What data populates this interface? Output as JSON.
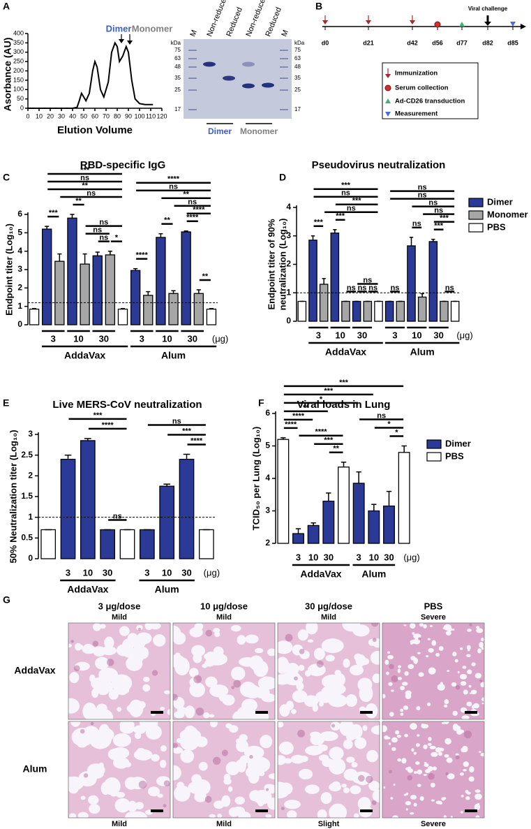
{
  "panel_labels": [
    "A",
    "B",
    "C",
    "D",
    "E",
    "F",
    "G"
  ],
  "chart_data": [
    {
      "type": "line",
      "x_label": "Elution Volume",
      "y_label": "Asorbance (AU)",
      "x": [
        0,
        40,
        44,
        46,
        48,
        50,
        52,
        55,
        58,
        60,
        62,
        65,
        68,
        72,
        75,
        78,
        80,
        82,
        85,
        88,
        90,
        93,
        96,
        100,
        105,
        112
      ],
      "values": [
        0,
        0,
        5,
        40,
        80,
        60,
        40,
        80,
        200,
        250,
        220,
        100,
        60,
        140,
        300,
        350,
        330,
        250,
        280,
        330,
        300,
        150,
        50,
        25,
        20,
        20
      ],
      "color": "#000000",
      "xlim": [
        0,
        120
      ],
      "xticks": [
        0,
        10,
        20,
        30,
        40,
        50,
        60,
        70,
        80,
        90,
        100,
        110,
        120
      ],
      "ylim": [
        0,
        400
      ],
      "yticks": [
        0,
        50,
        100,
        150,
        200,
        250,
        300,
        350,
        400
      ],
      "annotations": [
        {
          "text": "Dimer",
          "color": "#3a5fc5"
        },
        {
          "text": "Monomer",
          "color": "#808080"
        }
      ]
    },
    {
      "type": "bar",
      "title": "RBD-specific IgG",
      "y_label": "Endpoint titer (Log₁₀)",
      "ylim": [
        0,
        6
      ],
      "yticks": [
        0,
        1,
        2,
        3,
        4,
        5,
        6
      ],
      "threshold": 1.2,
      "series": [
        {
          "color": "#2b3a97",
          "values": [
            null,
            5.2,
            null,
            5.8,
            null,
            3.75,
            null,
            null,
            2.95,
            null,
            4.75,
            null,
            5.05,
            null,
            null
          ],
          "errors": [
            null,
            0.15,
            null,
            0.2,
            null,
            0.2,
            null,
            null,
            0.1,
            null,
            0.2,
            null,
            0.05,
            null,
            null
          ]
        },
        {
          "color": "#a6a6a6",
          "values": [
            null,
            null,
            3.45,
            null,
            3.3,
            null,
            3.8,
            null,
            null,
            1.6,
            null,
            1.7,
            null,
            1.7,
            null
          ],
          "errors": [
            null,
            null,
            0.4,
            null,
            0.55,
            null,
            0.2,
            null,
            null,
            0.2,
            null,
            0.15,
            null,
            0.2,
            null
          ]
        },
        {
          "color": "#ffffff",
          "values": [
            0.85,
            null,
            null,
            null,
            null,
            null,
            null,
            0.85,
            null,
            null,
            null,
            null,
            null,
            null,
            0.85
          ],
          "errors": [
            0.03,
            null,
            null,
            null,
            null,
            null,
            null,
            0.03,
            null,
            null,
            null,
            null,
            null,
            null,
            0.03
          ]
        }
      ],
      "dose_groups": [
        {
          "label": "3",
          "slots": [
            1,
            2
          ]
        },
        {
          "label": "10",
          "slots": [
            3,
            4
          ]
        },
        {
          "label": "30",
          "slots": [
            5,
            6
          ]
        },
        {
          "label": "3",
          "slots": [
            8,
            9
          ]
        },
        {
          "label": "10",
          "slots": [
            10,
            11
          ]
        },
        {
          "label": "30",
          "slots": [
            12,
            13
          ]
        }
      ],
      "adjuvant_groups": [
        {
          "label": "AddaVax",
          "slots": [
            1,
            7
          ]
        },
        {
          "label": "Alum",
          "slots": [
            8,
            14
          ]
        }
      ],
      "unit_label": "(μg)",
      "brackets": [
        {
          "slots": [
            1,
            2
          ],
          "label": "***"
        },
        {
          "slots": [
            3,
            4
          ],
          "label": "**"
        },
        {
          "slots": [
            5,
            6
          ],
          "label": "ns"
        },
        {
          "slots": [
            6,
            7
          ],
          "label": "*"
        },
        {
          "slots": [
            4,
            6
          ],
          "label": "ns"
        },
        {
          "slots": [
            4,
            7
          ],
          "label": "ns"
        },
        {
          "slots": [
            2,
            7
          ],
          "label": "ns"
        },
        {
          "slots": [
            1,
            7
          ],
          "label": "**"
        },
        {
          "slots": [
            1,
            7
          ],
          "label": "ns"
        },
        {
          "slots": [
            1,
            7
          ],
          "label": "***"
        },
        {
          "slots": [
            8,
            9
          ],
          "label": "****"
        },
        {
          "slots": [
            10,
            11
          ],
          "label": "**"
        },
        {
          "slots": [
            12,
            13
          ],
          "label": "****"
        },
        {
          "slots": [
            13,
            14
          ],
          "label": "**"
        },
        {
          "slots": [
            12,
            14
          ],
          "label": "****"
        },
        {
          "slots": [
            11,
            14
          ],
          "label": "ns"
        },
        {
          "slots": [
            10,
            14
          ],
          "label": "**"
        },
        {
          "slots": [
            8,
            14
          ],
          "label": "ns"
        },
        {
          "slots": [
            8,
            14
          ],
          "label": "****"
        }
      ]
    },
    {
      "type": "bar",
      "title": "Pseudovirus neutralization",
      "y_label": [
        "Endpoint titer of 90%",
        "neutralization (Log₁₀)"
      ],
      "ylim": [
        0,
        4
      ],
      "yticks": [
        0,
        1,
        2,
        3,
        4
      ],
      "threshold": 1,
      "legend": "right",
      "series": [
        {
          "name": "Dimer",
          "color": "#2b3a97",
          "values": [
            null,
            2.85,
            null,
            3.1,
            null,
            0.7,
            null,
            null,
            0.7,
            null,
            2.65,
            null,
            2.8,
            null,
            null
          ],
          "errors": [
            null,
            0.15,
            null,
            0.12,
            null,
            0,
            null,
            null,
            0,
            null,
            0.3,
            null,
            0.08,
            null,
            null
          ]
        },
        {
          "name": "Monomer",
          "color": "#a6a6a6",
          "values": [
            null,
            null,
            1.3,
            null,
            0.7,
            null,
            0.7,
            null,
            null,
            0.7,
            null,
            0.85,
            null,
            0.7,
            null
          ],
          "errors": [
            null,
            null,
            0.2,
            null,
            0,
            null,
            0,
            null,
            null,
            0,
            null,
            0.12,
            null,
            0,
            null
          ]
        },
        {
          "name": "PBS",
          "color": "#ffffff",
          "values": [
            0.7,
            null,
            null,
            null,
            null,
            null,
            null,
            0.7,
            null,
            null,
            null,
            null,
            null,
            null,
            0.7
          ],
          "errors": [
            0,
            null,
            null,
            null,
            null,
            null,
            null,
            0,
            null,
            null,
            null,
            null,
            null,
            null,
            0
          ]
        }
      ],
      "dose_groups": [
        {
          "label": "3",
          "slots": [
            1,
            2
          ]
        },
        {
          "label": "10",
          "slots": [
            3,
            4
          ]
        },
        {
          "label": "30",
          "slots": [
            5,
            6
          ]
        },
        {
          "label": "3",
          "slots": [
            8,
            9
          ]
        },
        {
          "label": "10",
          "slots": [
            10,
            11
          ]
        },
        {
          "label": "30",
          "slots": [
            12,
            13
          ]
        }
      ],
      "adjuvant_groups": [
        {
          "label": "AddaVax",
          "slots": [
            1,
            7
          ]
        },
        {
          "label": "Alum",
          "slots": [
            8,
            14
          ]
        }
      ],
      "unit_label": "(μg)",
      "brackets": [
        {
          "slots": [
            1,
            2
          ],
          "label": "***"
        },
        {
          "slots": [
            3,
            4
          ],
          "label": "***"
        },
        {
          "slots": [
            4,
            5
          ],
          "label": "ns"
        },
        {
          "slots": [
            5,
            6
          ],
          "label": "ns"
        },
        {
          "slots": [
            6,
            7
          ],
          "label": "ns"
        },
        {
          "slots": [
            5,
            7
          ],
          "label": "ns"
        },
        {
          "slots": [
            2,
            7
          ],
          "label": "ns"
        },
        {
          "slots": [
            3,
            7
          ],
          "label": "***"
        },
        {
          "slots": [
            1,
            7
          ],
          "label": "ns"
        },
        {
          "slots": [
            1,
            7
          ],
          "label": "***"
        },
        {
          "slots": [
            8,
            9
          ],
          "label": "ns"
        },
        {
          "slots": [
            10,
            11
          ],
          "label": "ns"
        },
        {
          "slots": [
            12,
            13
          ],
          "label": "***"
        },
        {
          "slots": [
            13,
            14
          ],
          "label": "ns"
        },
        {
          "slots": [
            12,
            14
          ],
          "label": "***"
        },
        {
          "slots": [
            11,
            14
          ],
          "label": "ns"
        },
        {
          "slots": [
            10,
            14
          ],
          "label": "ns"
        },
        {
          "slots": [
            8,
            14
          ],
          "label": "ns"
        },
        {
          "slots": [
            8,
            14
          ],
          "label": "ns"
        }
      ]
    },
    {
      "type": "bar",
      "title": "Live MERS-CoV neutralization",
      "y_label": "50% Neutralization titer (Log₁₀)",
      "ylim": [
        0,
        3
      ],
      "yticks": [
        0,
        0.5,
        1,
        1.5,
        2,
        2.5,
        3
      ],
      "threshold": 1,
      "series": [
        {
          "color": "#2b3a97",
          "values": [
            null,
            2.4,
            2.85,
            0.7,
            null,
            0.7,
            1.75,
            2.4,
            null
          ],
          "errors": [
            null,
            0.1,
            0.05,
            0,
            null,
            0,
            0.05,
            0.12,
            null
          ]
        },
        {
          "color": "#ffffff",
          "values": [
            0.7,
            null,
            null,
            null,
            0.7,
            null,
            null,
            null,
            0.7
          ],
          "errors": [
            0,
            null,
            null,
            null,
            0,
            null,
            null,
            null,
            0
          ]
        }
      ],
      "dose_groups": [
        {
          "label": "3",
          "slots": [
            1,
            1
          ]
        },
        {
          "label": "10",
          "slots": [
            2,
            2
          ]
        },
        {
          "label": "30",
          "slots": [
            3,
            3
          ]
        },
        {
          "label": "3",
          "slots": [
            5,
            5
          ]
        },
        {
          "label": "10",
          "slots": [
            6,
            6
          ]
        },
        {
          "label": "30",
          "slots": [
            7,
            7
          ]
        }
      ],
      "adjuvant_groups": [
        {
          "label": "AddaVax",
          "slots": [
            1,
            3
          ]
        },
        {
          "label": "Alum",
          "slots": [
            5,
            7
          ]
        }
      ],
      "unit_label": "(μg)",
      "brackets": [
        {
          "slots": [
            3,
            4
          ],
          "label": "ns"
        },
        {
          "slots": [
            2,
            4
          ],
          "label": "****"
        },
        {
          "slots": [
            1,
            4
          ],
          "label": "***"
        },
        {
          "slots": [
            7,
            8
          ],
          "label": "****"
        },
        {
          "slots": [
            6,
            8
          ],
          "label": "***"
        },
        {
          "slots": [
            5,
            8
          ],
          "label": "ns"
        }
      ]
    },
    {
      "type": "bar",
      "title": "Viral loads in Lung",
      "y_label": "TCID₅₀ per Lung (Log₁₀)",
      "ylim": [
        2,
        6
      ],
      "yticks": [
        2,
        3,
        4,
        5,
        6
      ],
      "legend": "right",
      "series": [
        {
          "name": "Dimer",
          "color": "#2b3a97",
          "values": [
            null,
            2.3,
            2.55,
            3.3,
            null,
            3.85,
            3.0,
            3.15,
            null
          ],
          "errors": [
            null,
            0.15,
            0.08,
            0.25,
            null,
            0.35,
            0.2,
            0.45,
            null
          ]
        },
        {
          "name": "PBS",
          "color": "#ffffff",
          "values": [
            5.2,
            null,
            null,
            null,
            4.35,
            null,
            null,
            null,
            4.8
          ],
          "errors": [
            0.05,
            null,
            null,
            null,
            0.15,
            null,
            null,
            null,
            0.2
          ]
        }
      ],
      "dose_groups": [
        {
          "label": "3",
          "slots": [
            1,
            1
          ]
        },
        {
          "label": "10",
          "slots": [
            2,
            2
          ]
        },
        {
          "label": "30",
          "slots": [
            3,
            3
          ]
        },
        {
          "label": "3",
          "slots": [
            5,
            5
          ]
        },
        {
          "label": "10",
          "slots": [
            6,
            6
          ]
        },
        {
          "label": "30",
          "slots": [
            7,
            7
          ]
        }
      ],
      "adjuvant_groups": [
        {
          "label": "AddaVax",
          "slots": [
            1,
            4
          ]
        },
        {
          "label": "Alum",
          "slots": [
            5,
            7
          ]
        }
      ],
      "unit_label": "(μg)",
      "brackets": [
        {
          "slots": [
            0,
            1
          ],
          "label": "****"
        },
        {
          "slots": [
            3,
            4
          ],
          "label": "**"
        },
        {
          "slots": [
            2,
            4
          ],
          "label": "***"
        },
        {
          "slots": [
            1,
            4
          ],
          "label": "****"
        },
        {
          "slots": [
            0,
            2
          ],
          "label": "****"
        },
        {
          "slots": [
            0,
            3
          ],
          "label": "**"
        },
        {
          "slots": [
            7,
            8
          ],
          "label": "*"
        },
        {
          "slots": [
            6,
            8
          ],
          "label": "*"
        },
        {
          "slots": [
            5,
            8
          ],
          "label": "ns"
        },
        {
          "slots": [
            0,
            5
          ],
          "label": "*"
        },
        {
          "slots": [
            0,
            6
          ],
          "label": "***"
        },
        {
          "slots": [
            0,
            8
          ],
          "label": "***"
        }
      ]
    }
  ],
  "gel": {
    "lanes": [
      "M",
      "Non-reduced",
      "Reduced",
      "Non-reduced",
      "Reduced",
      "M"
    ],
    "unit": "kDa",
    "ladder": [
      75,
      63,
      48,
      35,
      25,
      17
    ],
    "groups": [
      {
        "label": "Dimer",
        "color": "#3a5fc5"
      },
      {
        "label": "Monomer",
        "color": "#808080"
      }
    ]
  },
  "timeline": {
    "days": [
      "d0",
      "d21",
      "d42",
      "d56",
      "d77",
      "d82",
      "d85"
    ],
    "challenge": "Viral challenge",
    "legend": [
      "Immunization",
      "Serum collection",
      "Ad-CD26 transduction",
      "Measurement"
    ]
  },
  "histology": {
    "columns": [
      "3 μg/dose",
      "10 μg/dose",
      "30 μg/dose",
      "PBS"
    ],
    "rows": [
      {
        "label": "AddaVax",
        "scores": [
          "Mild",
          "Mild",
          "Mild",
          "Severe"
        ]
      },
      {
        "label": "Alum",
        "scores": [
          "Mild",
          "Mild",
          "Slight",
          "Severe"
        ]
      }
    ]
  }
}
